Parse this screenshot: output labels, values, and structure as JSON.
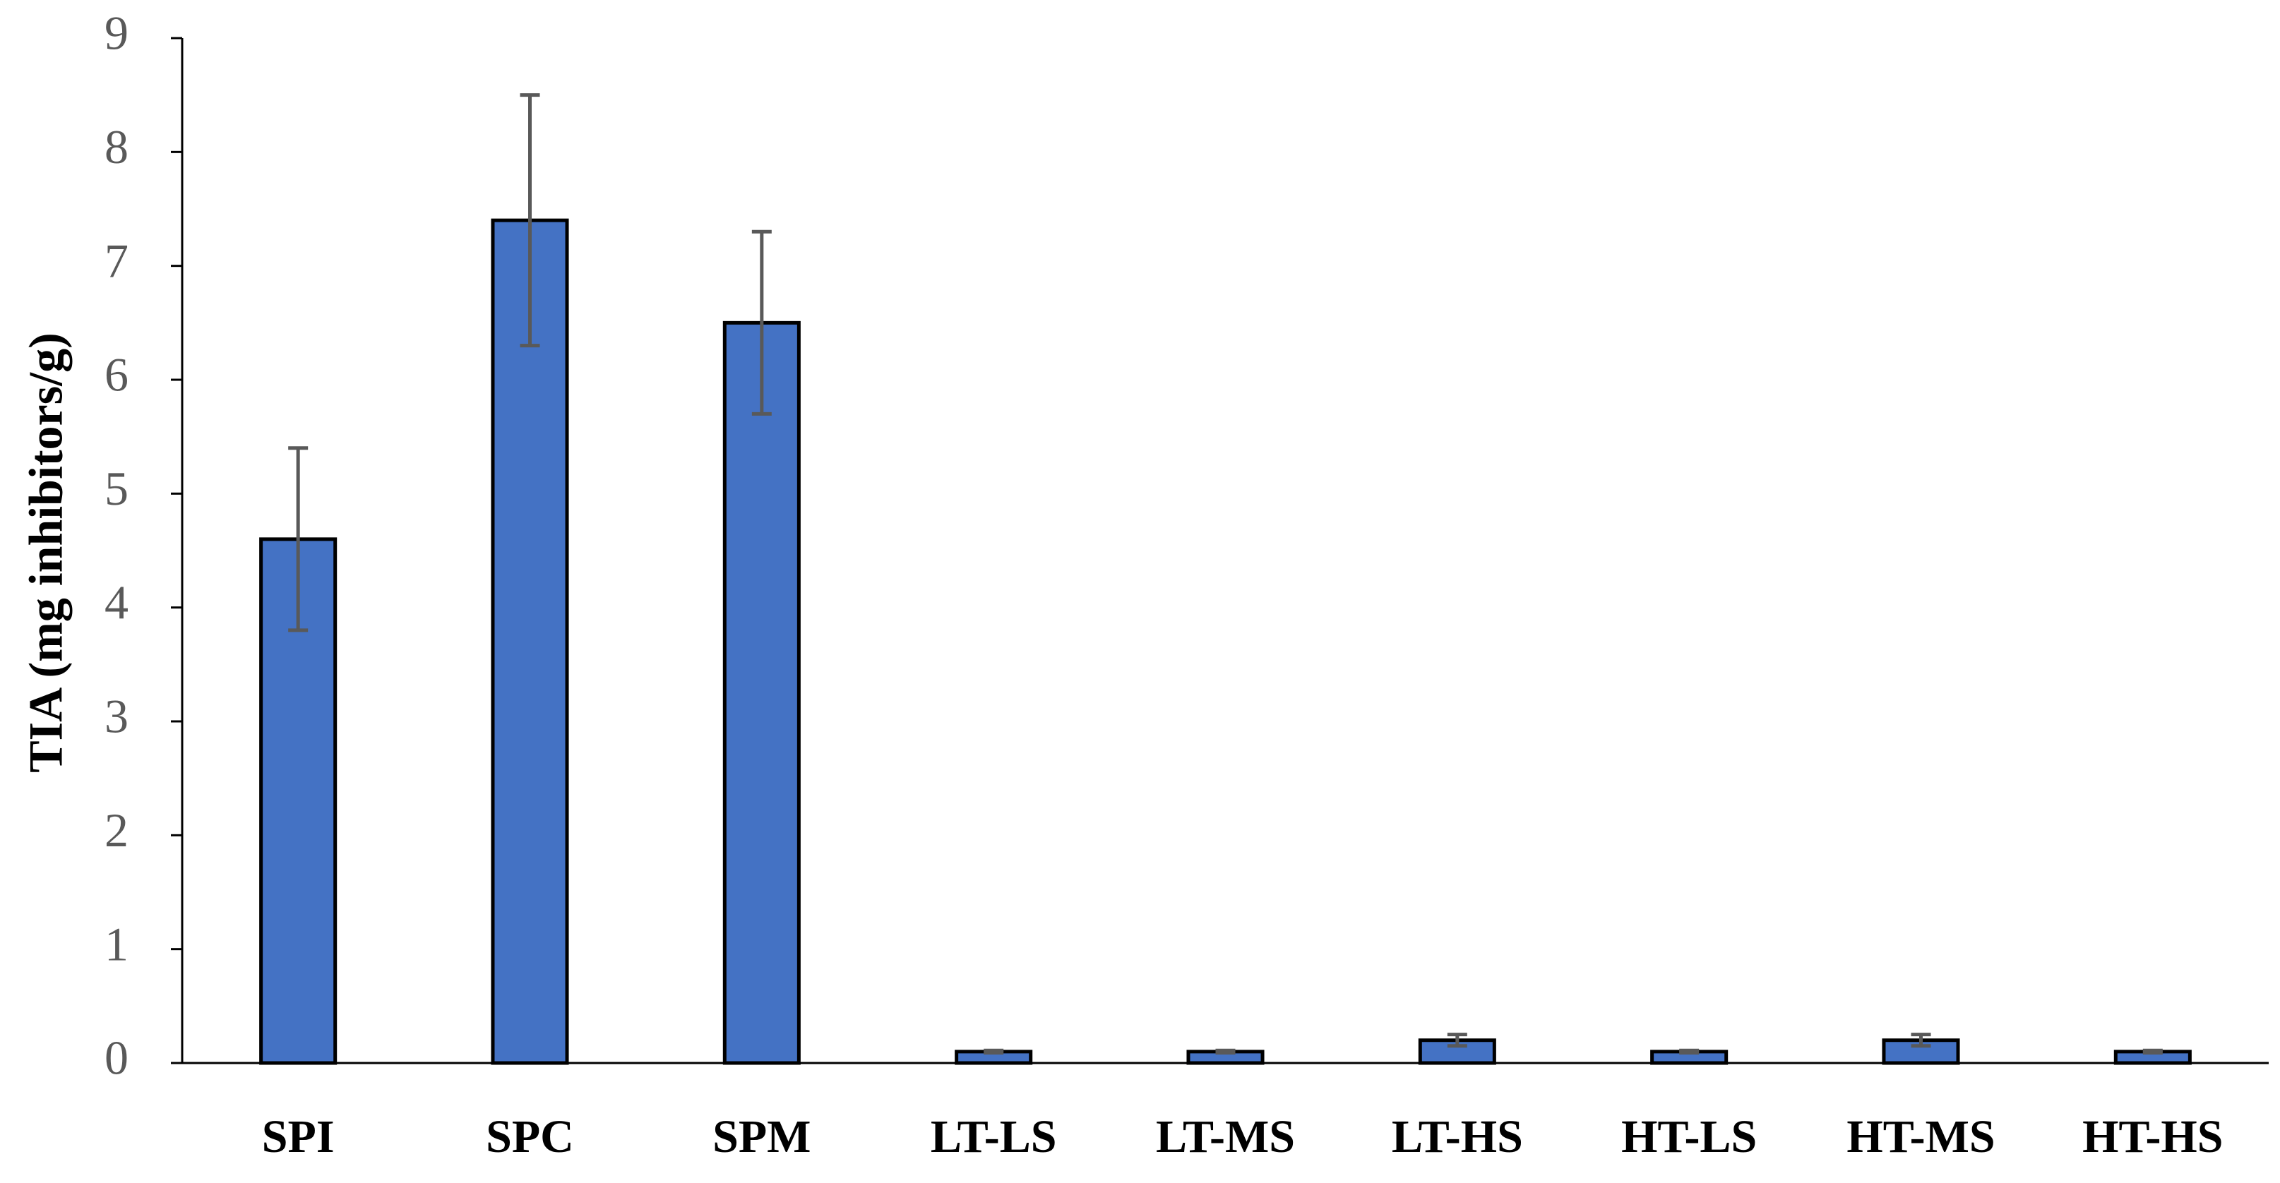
{
  "chart_data": {
    "type": "bar",
    "y_label": "TIA (mg inhibitors/g)",
    "categories": [
      "SPI",
      "SPC",
      "SPM",
      "LT-LS",
      "LT-MS",
      "LT-HS",
      "HT-LS",
      "HT-MS",
      "HT-HS"
    ],
    "values": [
      4.6,
      7.4,
      6.5,
      0.1,
      0.1,
      0.2,
      0.1,
      0.2,
      0.1
    ],
    "errors": [
      0.8,
      1.1,
      0.8,
      0.01,
      0.01,
      0.05,
      0.01,
      0.05,
      0.01
    ],
    "color": "#4472c4",
    "ylim": [
      0,
      9
    ],
    "yticks": [
      0,
      1,
      2,
      3,
      4,
      5,
      6,
      7,
      8,
      9
    ],
    "grid": false
  }
}
